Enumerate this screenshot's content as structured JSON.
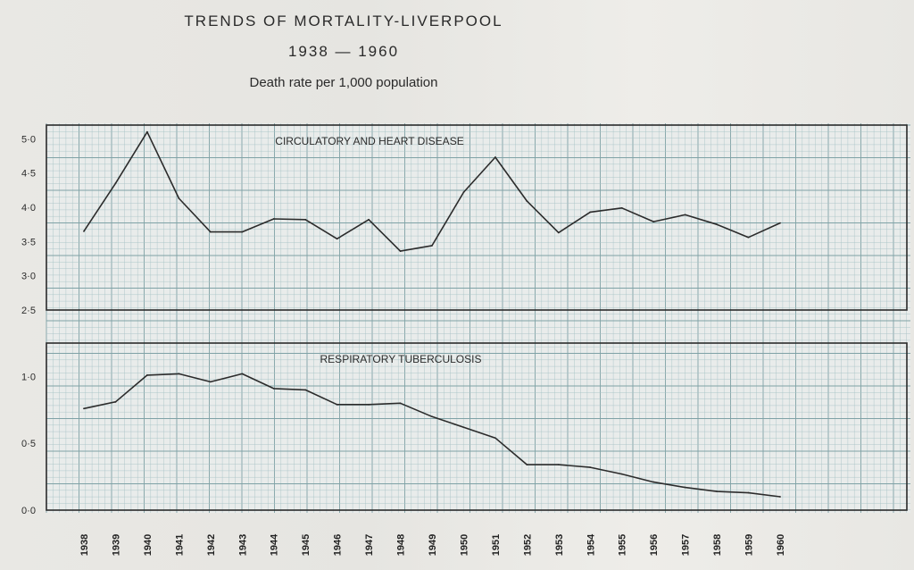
{
  "title": "TRENDS OF MORTALITY-LIVERPOOL",
  "subtitle": "1938 — 1960",
  "units_label": "Death rate per 1,000 population",
  "colors": {
    "grid_minor": "#a8c3c6",
    "grid_major": "#7fa2a6",
    "line": "#2b2b2b",
    "paper": "#e8e7e3"
  },
  "chart_data": [
    {
      "type": "line",
      "title": "CIRCULATORY AND HEART DISEASE",
      "x": [
        1938,
        1939,
        1940,
        1941,
        1942,
        1943,
        1944,
        1945,
        1946,
        1947,
        1948,
        1949,
        1950,
        1951,
        1952,
        1953,
        1954,
        1955,
        1956,
        1957,
        1958,
        1959,
        1960
      ],
      "series": [
        {
          "values": [
            3.65,
            4.35,
            5.1,
            4.13,
            3.64,
            3.64,
            3.83,
            3.82,
            3.54,
            3.82,
            3.36,
            3.44,
            4.22,
            4.73,
            4.09,
            3.63,
            3.93,
            3.99,
            3.79,
            3.89,
            3.75,
            3.56,
            3.77
          ]
        }
      ],
      "ylim": [
        2.5,
        5.2
      ],
      "yticks": [
        "5·0",
        "4·5",
        "4·0",
        "3·5",
        "3·0",
        "2·5"
      ],
      "ytick_values": [
        5.0,
        4.5,
        4.0,
        3.5,
        3.0,
        2.5
      ],
      "grid": true
    },
    {
      "type": "line",
      "title": "RESPIRATORY TUBERCULOSIS",
      "x": [
        1938,
        1939,
        1940,
        1941,
        1942,
        1943,
        1944,
        1945,
        1946,
        1947,
        1948,
        1949,
        1950,
        1951,
        1952,
        1953,
        1954,
        1955,
        1956,
        1957,
        1958,
        1959,
        1960
      ],
      "series": [
        {
          "values": [
            0.76,
            0.81,
            1.01,
            1.02,
            0.96,
            1.02,
            0.91,
            0.9,
            0.79,
            0.79,
            0.8,
            0.7,
            0.62,
            0.54,
            0.34,
            0.34,
            0.32,
            0.27,
            0.21,
            0.17,
            0.14,
            0.13,
            0.1
          ]
        }
      ],
      "ylim": [
        0.0,
        1.25
      ],
      "yticks": [
        "1·0",
        "0·5",
        "0·0"
      ],
      "ytick_values": [
        1.0,
        0.5,
        0.0
      ],
      "xtick_labels": [
        "1938",
        "1939",
        "1940",
        "1941",
        "1942",
        "1943",
        "1944",
        "1945",
        "1946",
        "1947",
        "1948",
        "1949",
        "1950",
        "1951",
        "1952",
        "1953",
        "1954",
        "1955",
        "1956",
        "1957",
        "1958",
        "1959",
        "1960"
      ],
      "grid": true
    }
  ]
}
